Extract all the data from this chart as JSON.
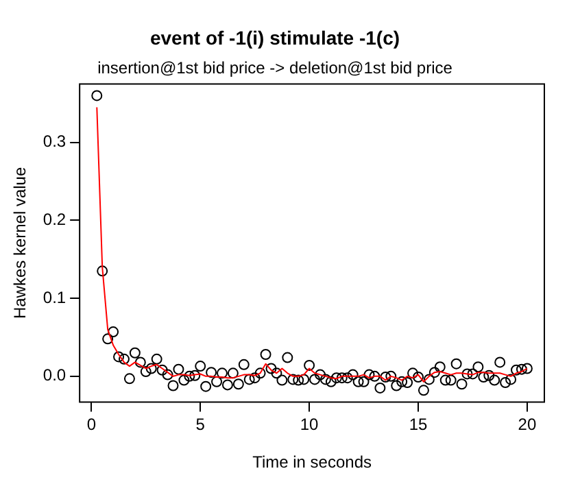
{
  "chart_data": {
    "type": "scatter",
    "title": "event of -1(i) stimulate -1(c)",
    "subtitle": "insertion@1st bid price -> deletion@1st bid price",
    "xlabel": "Time in seconds",
    "ylabel": "Hawkes kernel value",
    "x": [
      0.25,
      0.5,
      0.75,
      1,
      1.25,
      1.5,
      1.75,
      2,
      2.25,
      2.5,
      2.75,
      3,
      3.25,
      3.5,
      3.75,
      4,
      4.25,
      4.5,
      4.75,
      5,
      5.25,
      5.5,
      5.75,
      6,
      6.25,
      6.5,
      6.75,
      7,
      7.25,
      7.5,
      7.75,
      8,
      8.25,
      8.5,
      8.75,
      9,
      9.25,
      9.5,
      9.75,
      10,
      10.25,
      10.5,
      10.75,
      11,
      11.25,
      11.5,
      11.75,
      12,
      12.25,
      12.5,
      12.75,
      13,
      13.25,
      13.5,
      13.75,
      14,
      14.25,
      14.5,
      14.75,
      15,
      15.25,
      15.5,
      15.75,
      16,
      16.25,
      16.5,
      16.75,
      17,
      17.25,
      17.5,
      17.75,
      18,
      18.25,
      18.5,
      18.75,
      19,
      19.25,
      19.5,
      19.75,
      20
    ],
    "series": [
      {
        "type": "scatter",
        "color": "#000000",
        "marker": "circle",
        "values": [
          0.36,
          0.135,
          0.048,
          0.057,
          0.025,
          0.022,
          -0.003,
          0.03,
          0.018,
          0.006,
          0.01,
          0.022,
          0.008,
          0.002,
          -0.012,
          0.009,
          -0.005,
          0,
          0.001,
          0.013,
          -0.013,
          0.005,
          -0.007,
          0.004,
          -0.011,
          0.004,
          -0.01,
          0.015,
          -0.004,
          -0.002,
          0.004,
          0.028,
          0.01,
          0.004,
          -0.005,
          0.024,
          -0.004,
          -0.005,
          -0.004,
          0.014,
          -0.004,
          0.002,
          -0.004,
          -0.007,
          -0.002,
          -0.002,
          -0.002,
          0.002,
          -0.007,
          -0.007,
          0.002,
          0,
          -0.015,
          -0.001,
          0,
          -0.012,
          -0.007,
          -0.008,
          0.004,
          -0.001,
          -0.018,
          -0.004,
          0.005,
          0.012,
          -0.005,
          -0.005,
          0.016,
          -0.01,
          0.003,
          0.003,
          0.012,
          -0.001,
          0.001,
          -0.005,
          0.018,
          -0.008,
          -0.004,
          0.008,
          0.009,
          0.01
        ]
      },
      {
        "type": "line",
        "color": "#ff0000",
        "marker": "none",
        "line_style": "solid",
        "values": [
          0.345,
          0.14,
          0.06,
          0.04,
          0.028,
          0.018,
          0.013,
          0.018,
          0.014,
          0.01,
          0.013,
          0.015,
          0.01,
          0.005,
          0,
          0.002,
          0.002,
          0.001,
          0.002,
          0.003,
          0,
          0,
          -0.001,
          -0.001,
          -0.002,
          -0.002,
          0,
          0.002,
          0.002,
          0.001,
          0.004,
          0.016,
          0.008,
          0.004,
          0.01,
          0.004,
          0,
          0,
          0.002,
          0.01,
          0.004,
          0.002,
          0,
          -0.002,
          -0.003,
          0,
          0,
          0,
          0,
          0.002,
          -0.002,
          0,
          0,
          -0.005,
          0,
          -0.002,
          -0.005,
          0,
          -0.002,
          0.002,
          -0.007,
          0,
          0.005,
          0.006,
          0.004,
          0.002,
          0.004,
          0.004,
          0.003,
          0.002,
          0.005,
          0.005,
          0.004,
          0.004,
          0.004,
          0.002,
          0,
          0.004,
          0.006,
          0.01
        ]
      }
    ],
    "xlim": [
      -0.54,
      20.79
    ],
    "xticks": [
      0,
      5,
      10,
      15,
      20
    ],
    "ylim": [
      -0.033,
      0.375
    ],
    "yticks": [
      {
        "value": 0,
        "label": "0.0"
      },
      {
        "value": 0.1,
        "label": "0.1"
      },
      {
        "value": 0.2,
        "label": "0.2"
      },
      {
        "value": 0.3,
        "label": "0.3"
      }
    ],
    "grid": false,
    "legend": false
  }
}
